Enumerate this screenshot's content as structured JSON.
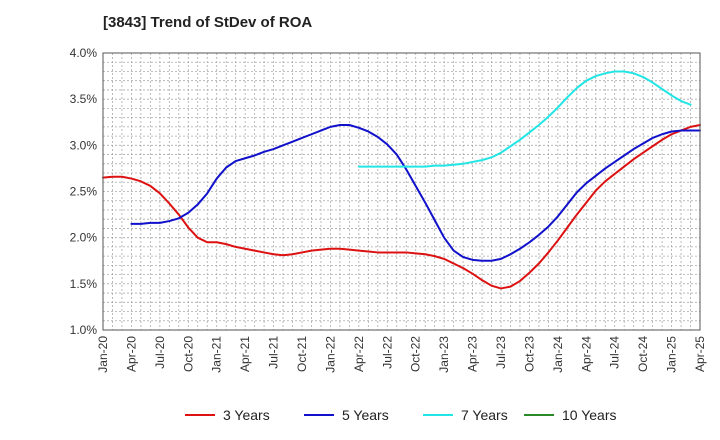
{
  "chart_data": {
    "type": "line",
    "title": "[3843]  Trend of StDev of ROA",
    "xlabel": "",
    "ylabel": "",
    "x_ticks": [
      "Jan-20",
      "Apr-20",
      "Jul-20",
      "Oct-20",
      "Jan-21",
      "Apr-21",
      "Jul-21",
      "Oct-21",
      "Jan-22",
      "Apr-22",
      "Jul-22",
      "Oct-22",
      "Jan-23",
      "Apr-23",
      "Jul-23",
      "Oct-23",
      "Jan-24",
      "Apr-24",
      "Jul-24",
      "Oct-24",
      "Jan-25",
      "Apr-25"
    ],
    "y_ticks": [
      "1.0%",
      "1.5%",
      "2.0%",
      "2.5%",
      "3.0%",
      "3.5%",
      "4.0%"
    ],
    "ylim": [
      1.0,
      4.0
    ],
    "grid": true,
    "legend_position": "bottom",
    "series": [
      {
        "name": "3 Years",
        "color": "#dd1111",
        "points": [
          [
            "Jan-20",
            2.65
          ],
          [
            "Feb-20",
            2.66
          ],
          [
            "Mar-20",
            2.66
          ],
          [
            "Apr-20",
            2.64
          ],
          [
            "May-20",
            2.61
          ],
          [
            "Jun-20",
            2.56
          ],
          [
            "Jul-20",
            2.48
          ],
          [
            "Aug-20",
            2.37
          ],
          [
            "Sep-20",
            2.25
          ],
          [
            "Oct-20",
            2.11
          ],
          [
            "Nov-20",
            2.0
          ],
          [
            "Dec-20",
            1.95
          ],
          [
            "Jan-21",
            1.95
          ],
          [
            "Feb-21",
            1.93
          ],
          [
            "Mar-21",
            1.9
          ],
          [
            "Apr-21",
            1.88
          ],
          [
            "May-21",
            1.86
          ],
          [
            "Jun-21",
            1.84
          ],
          [
            "Jul-21",
            1.82
          ],
          [
            "Aug-21",
            1.81
          ],
          [
            "Sep-21",
            1.82
          ],
          [
            "Oct-21",
            1.84
          ],
          [
            "Nov-21",
            1.86
          ],
          [
            "Dec-21",
            1.87
          ],
          [
            "Jan-22",
            1.88
          ],
          [
            "Feb-22",
            1.88
          ],
          [
            "Mar-22",
            1.87
          ],
          [
            "Apr-22",
            1.86
          ],
          [
            "May-22",
            1.85
          ],
          [
            "Jun-22",
            1.84
          ],
          [
            "Jul-22",
            1.84
          ],
          [
            "Aug-22",
            1.84
          ],
          [
            "Sep-22",
            1.84
          ],
          [
            "Oct-22",
            1.83
          ],
          [
            "Nov-22",
            1.82
          ],
          [
            "Dec-22",
            1.8
          ],
          [
            "Jan-23",
            1.77
          ],
          [
            "Feb-23",
            1.72
          ],
          [
            "Mar-23",
            1.67
          ],
          [
            "Apr-23",
            1.61
          ],
          [
            "May-23",
            1.54
          ],
          [
            "Jun-23",
            1.48
          ],
          [
            "Jul-23",
            1.45
          ],
          [
            "Aug-23",
            1.47
          ],
          [
            "Sep-23",
            1.53
          ],
          [
            "Oct-23",
            1.62
          ],
          [
            "Nov-23",
            1.72
          ],
          [
            "Dec-23",
            1.84
          ],
          [
            "Jan-24",
            1.97
          ],
          [
            "Feb-24",
            2.11
          ],
          [
            "Mar-24",
            2.25
          ],
          [
            "Apr-24",
            2.38
          ],
          [
            "May-24",
            2.51
          ],
          [
            "Jun-24",
            2.61
          ],
          [
            "Jul-24",
            2.69
          ],
          [
            "Aug-24",
            2.77
          ],
          [
            "Sep-24",
            2.85
          ],
          [
            "Oct-24",
            2.92
          ],
          [
            "Nov-24",
            2.99
          ],
          [
            "Dec-24",
            3.06
          ],
          [
            "Jan-25",
            3.12
          ],
          [
            "Feb-25",
            3.16
          ],
          [
            "Mar-25",
            3.2
          ],
          [
            "Apr-25",
            3.22
          ]
        ]
      },
      {
        "name": "5 Years",
        "color": "#1111cc",
        "points": [
          [
            "Apr-20",
            2.15
          ],
          [
            "May-20",
            2.15
          ],
          [
            "Jun-20",
            2.16
          ],
          [
            "Jul-20",
            2.16
          ],
          [
            "Aug-20",
            2.18
          ],
          [
            "Sep-20",
            2.21
          ],
          [
            "Oct-20",
            2.27
          ],
          [
            "Nov-20",
            2.36
          ],
          [
            "Dec-20",
            2.48
          ],
          [
            "Jan-21",
            2.64
          ],
          [
            "Feb-21",
            2.76
          ],
          [
            "Mar-21",
            2.83
          ],
          [
            "Apr-21",
            2.86
          ],
          [
            "May-21",
            2.89
          ],
          [
            "Jun-21",
            2.93
          ],
          [
            "Jul-21",
            2.96
          ],
          [
            "Aug-21",
            3.0
          ],
          [
            "Sep-21",
            3.04
          ],
          [
            "Oct-21",
            3.08
          ],
          [
            "Nov-21",
            3.12
          ],
          [
            "Dec-21",
            3.16
          ],
          [
            "Jan-22",
            3.2
          ],
          [
            "Feb-22",
            3.22
          ],
          [
            "Mar-22",
            3.22
          ],
          [
            "Apr-22",
            3.19
          ],
          [
            "May-22",
            3.15
          ],
          [
            "Jun-22",
            3.09
          ],
          [
            "Jul-22",
            3.01
          ],
          [
            "Aug-22",
            2.9
          ],
          [
            "Sep-22",
            2.74
          ],
          [
            "Oct-22",
            2.56
          ],
          [
            "Nov-22",
            2.38
          ],
          [
            "Dec-22",
            2.19
          ],
          [
            "Jan-23",
            2.0
          ],
          [
            "Feb-23",
            1.86
          ],
          [
            "Mar-23",
            1.79
          ],
          [
            "Apr-23",
            1.76
          ],
          [
            "May-23",
            1.75
          ],
          [
            "Jun-23",
            1.75
          ],
          [
            "Jul-23",
            1.77
          ],
          [
            "Aug-23",
            1.82
          ],
          [
            "Sep-23",
            1.88
          ],
          [
            "Oct-23",
            1.95
          ],
          [
            "Nov-23",
            2.03
          ],
          [
            "Dec-23",
            2.12
          ],
          [
            "Jan-24",
            2.23
          ],
          [
            "Feb-24",
            2.36
          ],
          [
            "Mar-24",
            2.49
          ],
          [
            "Apr-24",
            2.59
          ],
          [
            "May-24",
            2.67
          ],
          [
            "Jun-24",
            2.75
          ],
          [
            "Jul-24",
            2.82
          ],
          [
            "Aug-24",
            2.89
          ],
          [
            "Sep-24",
            2.96
          ],
          [
            "Oct-24",
            3.02
          ],
          [
            "Nov-24",
            3.08
          ],
          [
            "Dec-24",
            3.12
          ],
          [
            "Jan-25",
            3.15
          ],
          [
            "Feb-25",
            3.16
          ],
          [
            "Mar-25",
            3.16
          ],
          [
            "Apr-25",
            3.16
          ]
        ]
      },
      {
        "name": "7 Years",
        "color": "#22e5e5",
        "points": [
          [
            "Apr-22",
            2.77
          ],
          [
            "May-22",
            2.77
          ],
          [
            "Jun-22",
            2.77
          ],
          [
            "Jul-22",
            2.77
          ],
          [
            "Aug-22",
            2.77
          ],
          [
            "Sep-22",
            2.77
          ],
          [
            "Oct-22",
            2.77
          ],
          [
            "Nov-22",
            2.77
          ],
          [
            "Dec-22",
            2.78
          ],
          [
            "Jan-23",
            2.78
          ],
          [
            "Feb-23",
            2.79
          ],
          [
            "Mar-23",
            2.8
          ],
          [
            "Apr-23",
            2.82
          ],
          [
            "May-23",
            2.84
          ],
          [
            "Jun-23",
            2.87
          ],
          [
            "Jul-23",
            2.92
          ],
          [
            "Aug-23",
            2.99
          ],
          [
            "Sep-23",
            3.06
          ],
          [
            "Oct-23",
            3.14
          ],
          [
            "Nov-23",
            3.22
          ],
          [
            "Dec-23",
            3.31
          ],
          [
            "Jan-24",
            3.41
          ],
          [
            "Feb-24",
            3.52
          ],
          [
            "Mar-24",
            3.62
          ],
          [
            "Apr-24",
            3.7
          ],
          [
            "May-24",
            3.75
          ],
          [
            "Jun-24",
            3.78
          ],
          [
            "Jul-24",
            3.8
          ],
          [
            "Aug-24",
            3.8
          ],
          [
            "Sep-24",
            3.78
          ],
          [
            "Oct-24",
            3.74
          ],
          [
            "Nov-24",
            3.68
          ],
          [
            "Dec-24",
            3.61
          ],
          [
            "Jan-25",
            3.54
          ],
          [
            "Feb-25",
            3.48
          ],
          [
            "Mar-25",
            3.44
          ]
        ]
      },
      {
        "name": "10 Years",
        "color": "#2a8a2a",
        "points": []
      }
    ]
  }
}
